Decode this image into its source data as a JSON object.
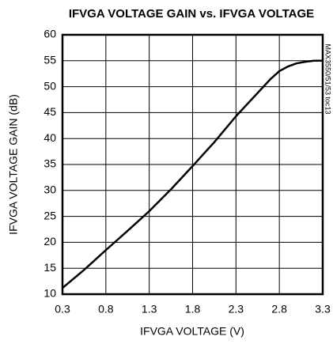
{
  "chart_data": {
    "type": "line",
    "title": "IFVGA VOLTAGE GAIN vs. IFVGA VOLTAGE",
    "xlabel": "IFVGA VOLTAGE (V)",
    "ylabel": "IFVGA VOLTAGE GAIN (dB)",
    "annotation": "MAX3550/51/53 toc13",
    "x": [
      0.3,
      0.55,
      0.8,
      1.05,
      1.3,
      1.55,
      1.8,
      2.05,
      2.3,
      2.55,
      2.7,
      2.8,
      2.9,
      3.0,
      3.1,
      3.2,
      3.3
    ],
    "series": [
      {
        "name": "IFVGA VOLTAGE GAIN",
        "color": "#000000",
        "values": [
          11.2,
          14.7,
          18.5,
          22.2,
          26,
          30.2,
          34.7,
          39.3,
          44.3,
          48.8,
          51.5,
          53,
          53.9,
          54.5,
          54.8,
          55,
          55
        ]
      }
    ],
    "xlim": [
      0.3,
      3.3
    ],
    "xticks": [
      0.3,
      0.8,
      1.3,
      1.8,
      2.3,
      2.8,
      3.3
    ],
    "ylim": [
      10,
      60
    ],
    "yticks": [
      10,
      15,
      20,
      25,
      30,
      35,
      40,
      45,
      50,
      55,
      60
    ],
    "grid": true
  }
}
